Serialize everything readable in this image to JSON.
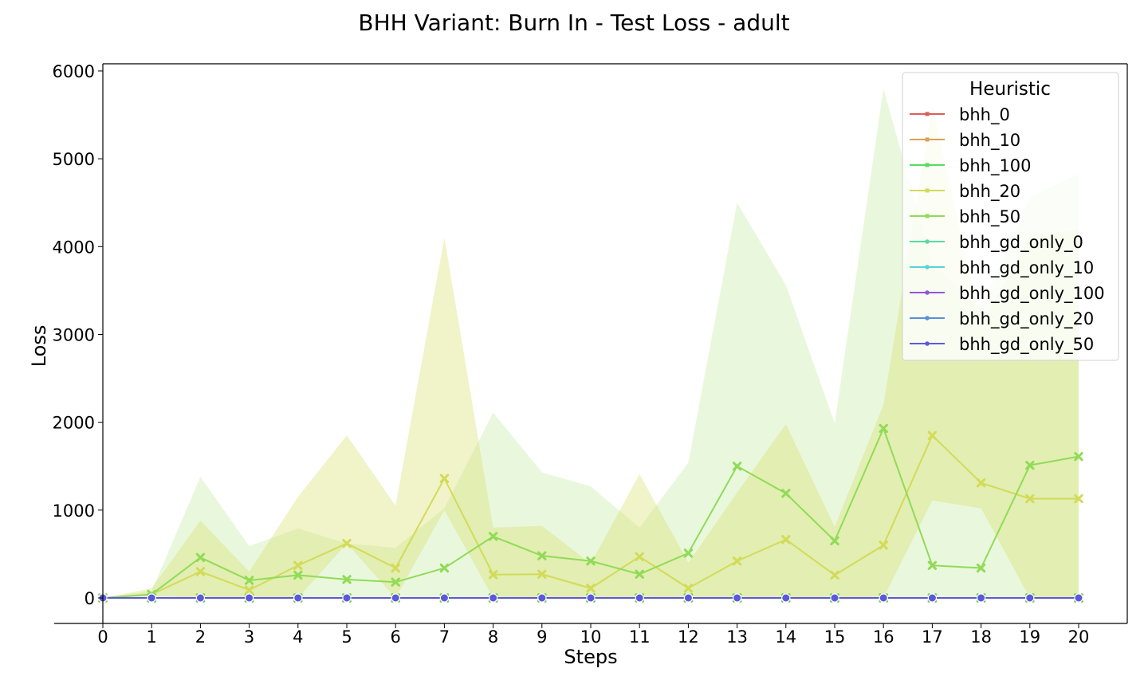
{
  "chart_data": {
    "type": "line",
    "title": "BHH Variant: Burn In - Test Loss - adult",
    "xlabel": "Steps",
    "ylabel": "Loss",
    "xlim": [
      -0.5,
      21
    ],
    "ylim": [
      -290,
      6080
    ],
    "x": [
      0,
      1,
      2,
      3,
      4,
      5,
      6,
      7,
      8,
      9,
      10,
      11,
      12,
      13,
      14,
      15,
      16,
      17,
      18,
      19,
      20
    ],
    "xticks": [
      0,
      1,
      2,
      3,
      4,
      5,
      6,
      7,
      8,
      9,
      10,
      11,
      12,
      13,
      14,
      15,
      16,
      17,
      18,
      19,
      20
    ],
    "yticks": [
      0,
      1000,
      2000,
      3000,
      4000,
      5000,
      6000
    ],
    "grid": false,
    "legend": {
      "title": "Heuristic",
      "placement": "top-right"
    },
    "series": [
      {
        "name": "bhh_0",
        "color": "#db5f57",
        "marker": "x",
        "values": [
          0,
          0,
          0,
          0,
          0,
          0,
          0,
          0,
          0,
          0,
          0,
          0,
          0,
          0,
          0,
          0,
          0,
          0,
          0,
          0,
          0
        ]
      },
      {
        "name": "bhh_10",
        "color": "#dba157",
        "marker": "x",
        "values": [
          0,
          0,
          0,
          0,
          0,
          0,
          0,
          0,
          0,
          0,
          0,
          0,
          0,
          0,
          0,
          0,
          0,
          0,
          0,
          0,
          0
        ]
      },
      {
        "name": "bhh_100",
        "color": "#57db5f",
        "marker": "x",
        "values": [
          0,
          0,
          0,
          0,
          0,
          0,
          0,
          0,
          0,
          0,
          0,
          0,
          0,
          0,
          0,
          0,
          0,
          0,
          0,
          0,
          0
        ]
      },
      {
        "name": "bhh_20",
        "color": "#d3db57",
        "marker": "x",
        "values": [
          0,
          40,
          300,
          90,
          370,
          620,
          340,
          1360,
          265,
          270,
          110,
          470,
          110,
          420,
          665,
          260,
          600,
          1850,
          1310,
          1130,
          1130
        ],
        "band_low": [
          0,
          20,
          0,
          0,
          0,
          620,
          0,
          1000,
          0,
          0,
          0,
          0,
          0,
          0,
          0,
          0,
          0,
          1110,
          1020,
          0,
          0
        ],
        "band_high": [
          0,
          110,
          880,
          300,
          1150,
          1850,
          1050,
          4100,
          800,
          820,
          390,
          1410,
          400,
          1200,
          1980,
          810,
          2200,
          5600,
          3100,
          4120,
          4200
        ]
      },
      {
        "name": "bhh_50",
        "color": "#91db57",
        "marker": "x",
        "values": [
          0,
          40,
          460,
          200,
          260,
          210,
          180,
          340,
          700,
          480,
          420,
          270,
          510,
          1500,
          1190,
          650,
          1930,
          370,
          340,
          1510,
          1610
        ],
        "band_low": [
          0,
          0,
          0,
          0,
          0,
          0,
          0,
          0,
          0,
          0,
          0,
          0,
          0,
          0,
          0,
          0,
          0,
          0,
          0,
          0,
          0
        ],
        "band_high": [
          0,
          80,
          1380,
          590,
          790,
          620,
          570,
          1020,
          2110,
          1430,
          1270,
          800,
          1540,
          4500,
          3560,
          1990,
          5800,
          3800,
          3300,
          4560,
          4830
        ]
      },
      {
        "name": "bhh_gd_only_0",
        "color": "#57dba1",
        "marker": "o",
        "values": [
          0,
          0,
          0,
          0,
          0,
          0,
          0,
          0,
          0,
          0,
          0,
          0,
          0,
          0,
          0,
          0,
          0,
          0,
          0,
          0,
          0
        ]
      },
      {
        "name": "bhh_gd_only_10",
        "color": "#57d3db",
        "marker": "o",
        "values": [
          0,
          0,
          0,
          0,
          0,
          0,
          0,
          0,
          0,
          0,
          0,
          0,
          0,
          0,
          0,
          0,
          0,
          0,
          0,
          0,
          0
        ]
      },
      {
        "name": "bhh_gd_only_100",
        "color": "#9157db",
        "marker": "o",
        "values": [
          0,
          0,
          0,
          0,
          0,
          0,
          0,
          0,
          0,
          0,
          0,
          0,
          0,
          0,
          0,
          0,
          0,
          0,
          0,
          0,
          0
        ]
      },
      {
        "name": "bhh_gd_only_20",
        "color": "#5791db",
        "marker": "o",
        "values": [
          0,
          0,
          0,
          0,
          0,
          0,
          0,
          0,
          0,
          0,
          0,
          0,
          0,
          0,
          0,
          0,
          0,
          0,
          0,
          0,
          0
        ]
      },
      {
        "name": "bhh_gd_only_50",
        "color": "#5f57db",
        "marker": "o",
        "values": [
          0,
          0,
          0,
          0,
          0,
          0,
          0,
          0,
          0,
          0,
          0,
          0,
          0,
          0,
          0,
          0,
          0,
          0,
          0,
          0,
          0
        ]
      }
    ]
  }
}
